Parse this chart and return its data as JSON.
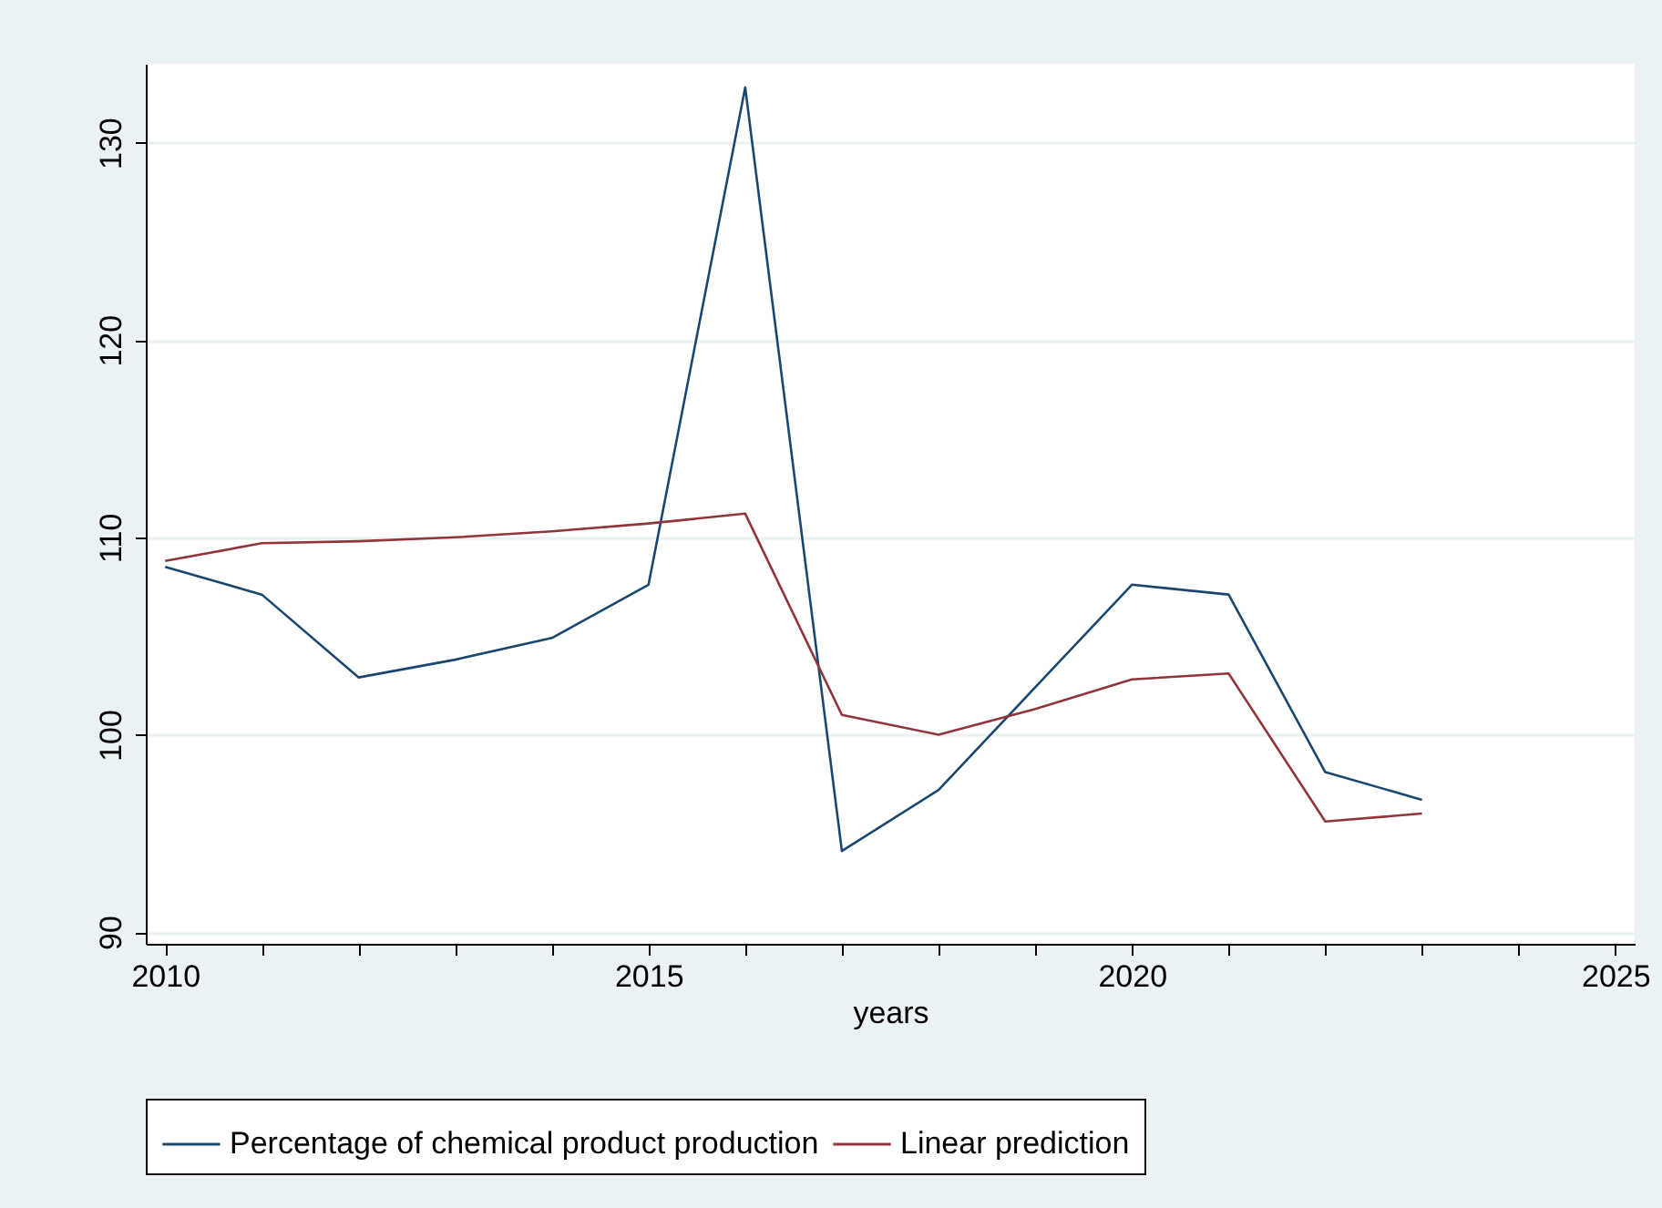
{
  "chart_data": {
    "type": "line",
    "xlabel": "years",
    "x": [
      2010,
      2011,
      2012,
      2013,
      2014,
      2015,
      2016,
      2017,
      2018,
      2019,
      2020,
      2021,
      2022,
      2023
    ],
    "series": [
      {
        "name": "Percentage of chemical product production",
        "color": "#1a476f",
        "values": [
          108.5,
          107.1,
          102.9,
          103.8,
          104.9,
          107.6,
          132.8,
          94.1,
          97.2,
          102.4,
          107.6,
          107.1,
          98.1,
          96.7
        ]
      },
      {
        "name": "Linear prediction",
        "color": "#90353b",
        "values": [
          108.8,
          109.7,
          109.8,
          110.0,
          110.3,
          110.7,
          111.2,
          101.0,
          100.0,
          101.3,
          102.8,
          103.1,
          95.6,
          96.0
        ]
      }
    ],
    "xlim": [
      2009.8,
      2025.2
    ],
    "xticks": [
      2010,
      {
        "value": 2011,
        "label": null
      },
      {
        "value": 2012,
        "label": null
      },
      {
        "value": 2013,
        "label": null
      },
      {
        "value": 2014,
        "label": null
      },
      2015,
      {
        "value": 2016,
        "label": null
      },
      {
        "value": 2017,
        "label": null
      },
      {
        "value": 2018,
        "label": null
      },
      {
        "value": 2019,
        "label": null
      },
      2020,
      {
        "value": 2021,
        "label": null
      },
      {
        "value": 2022,
        "label": null
      },
      {
        "value": 2023,
        "label": null
      },
      {
        "value": 2024,
        "label": null
      },
      2025
    ],
    "ylim": [
      89.4,
      134
    ],
    "yticks": [
      90,
      100,
      110,
      120,
      130
    ],
    "grid": "y",
    "legend": "bottom",
    "marker": "none",
    "line_style": "solid"
  }
}
